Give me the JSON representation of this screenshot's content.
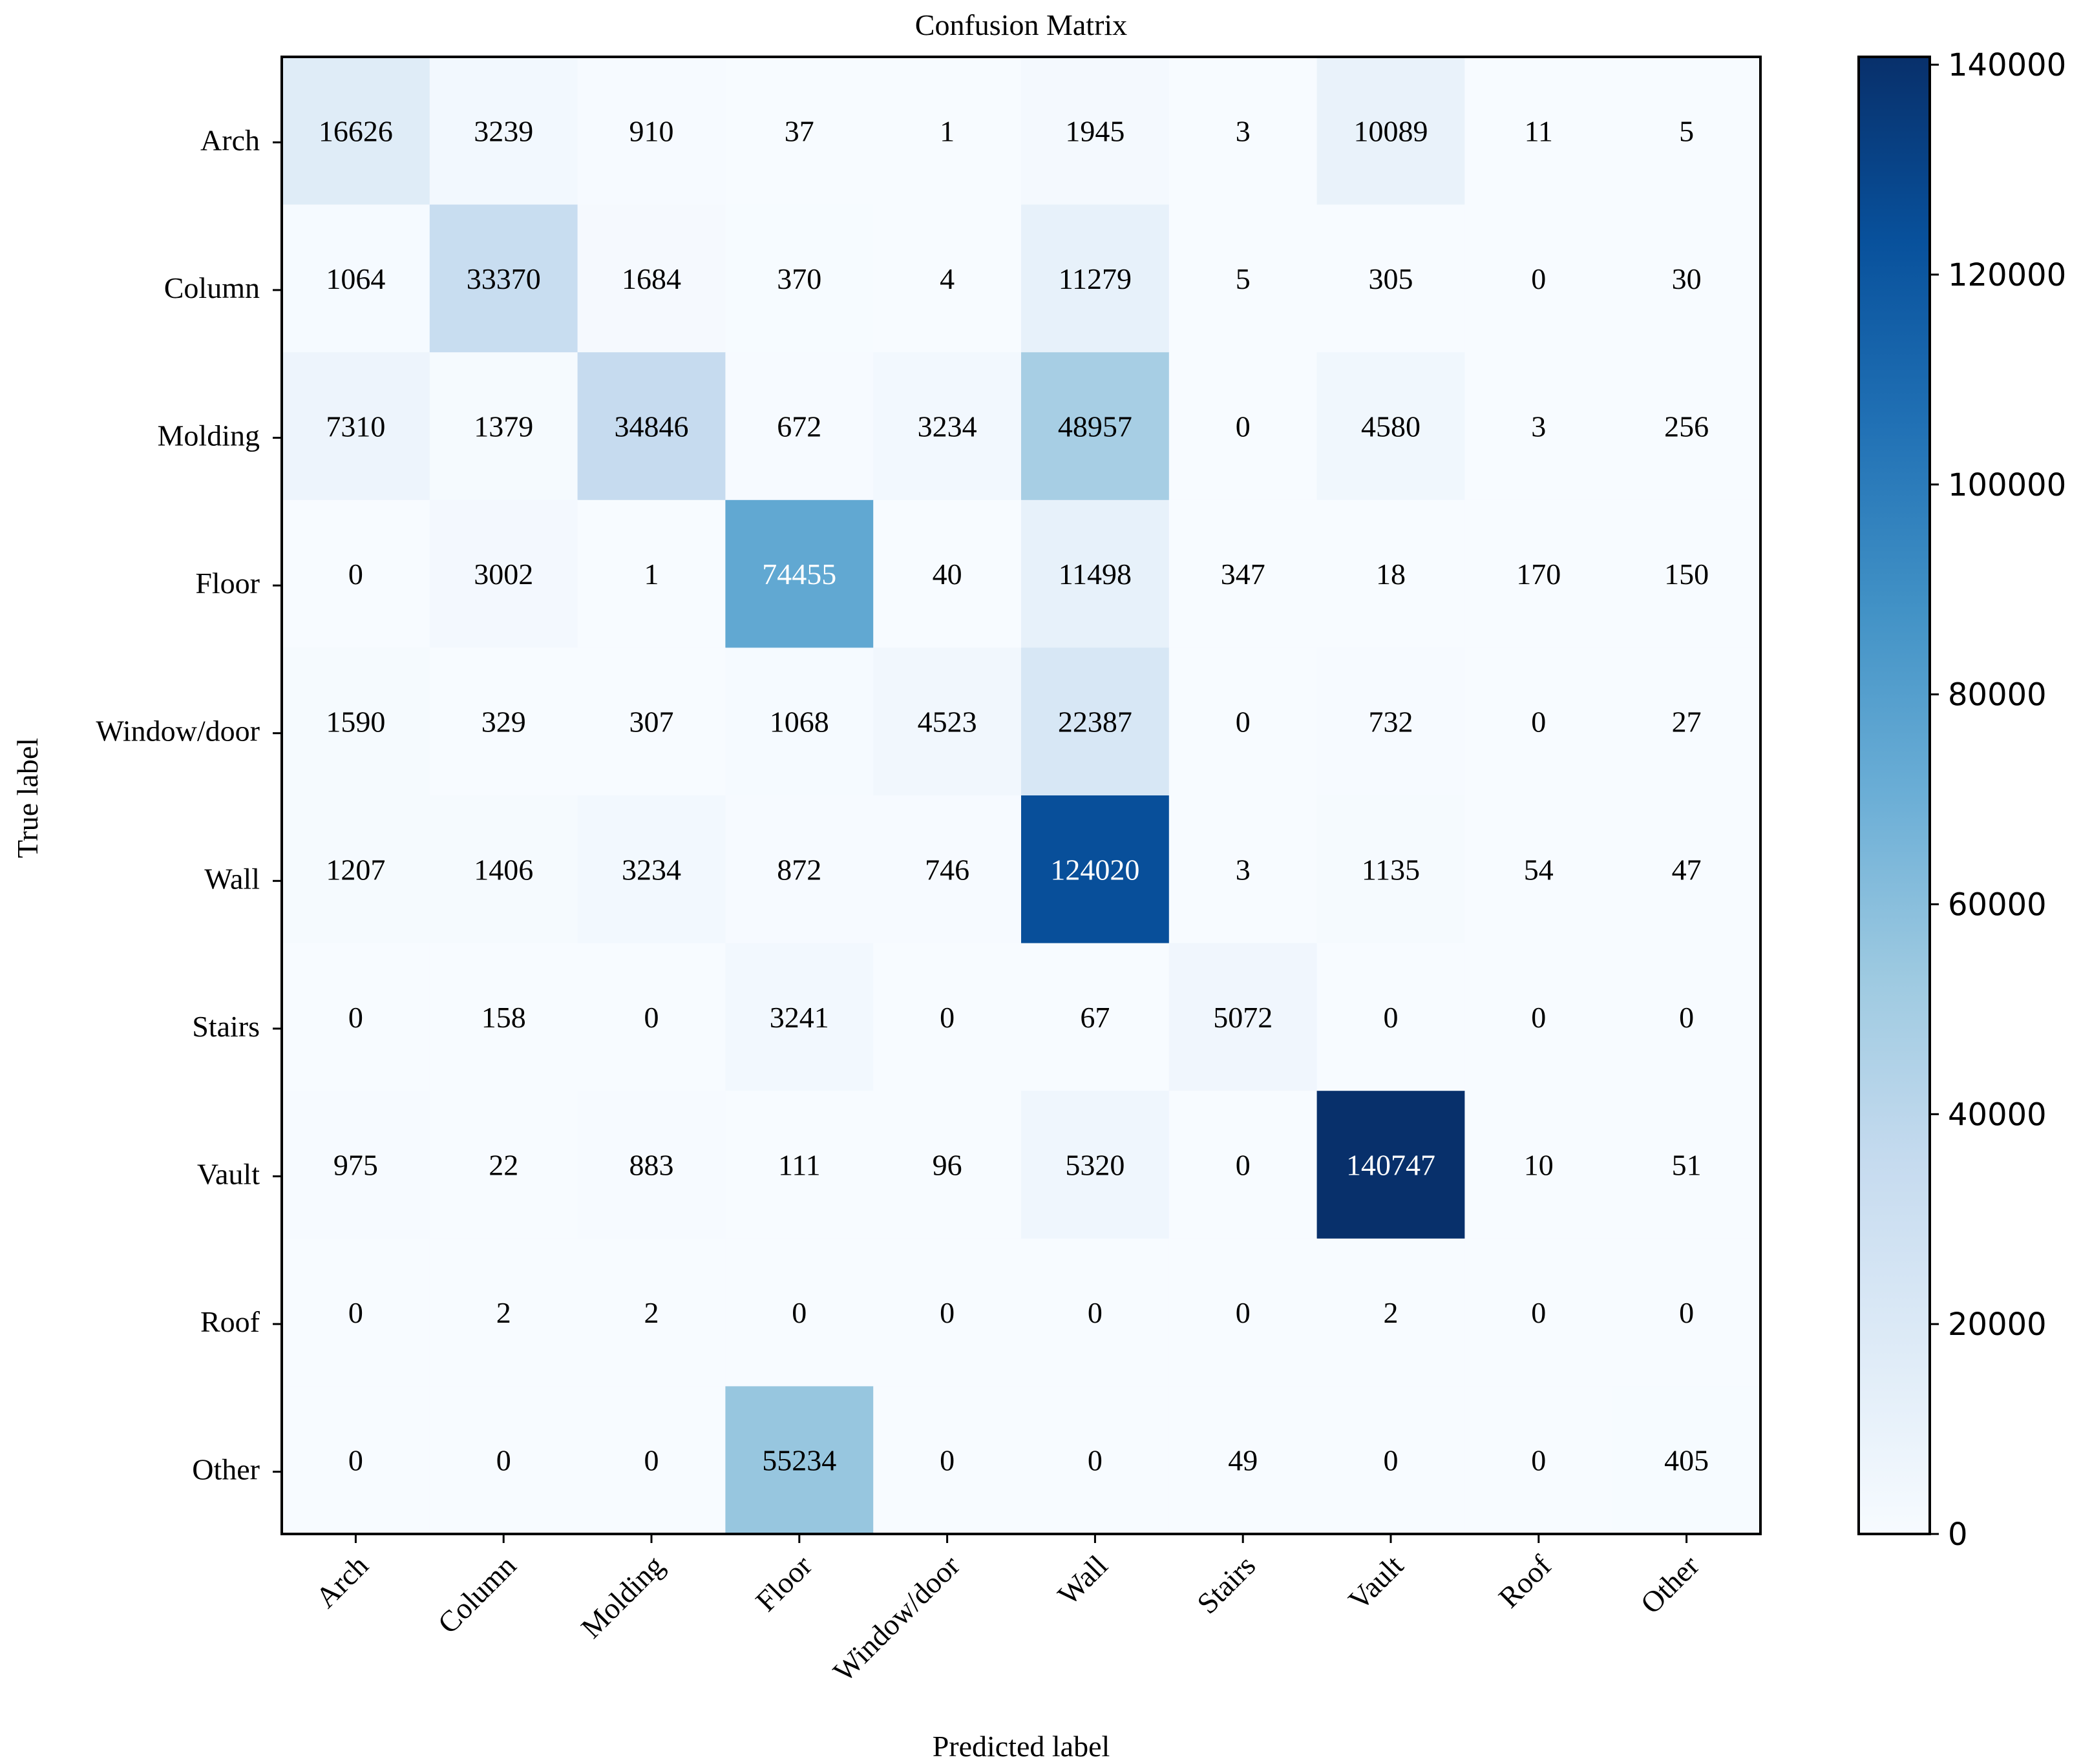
{
  "chart_data": {
    "type": "heatmap",
    "title": "Confusion Matrix",
    "xlabel": "Predicted label",
    "ylabel": "True label",
    "x_categories": [
      "Arch",
      "Column",
      "Molding",
      "Floor",
      "Window/door",
      "Wall",
      "Stairs",
      "Vault",
      "Roof",
      "Other"
    ],
    "y_categories": [
      "Arch",
      "Column",
      "Molding",
      "Floor",
      "Window/door",
      "Wall",
      "Stairs",
      "Vault",
      "Roof",
      "Other"
    ],
    "matrix": [
      [
        16626,
        3239,
        910,
        37,
        1,
        1945,
        3,
        10089,
        11,
        5
      ],
      [
        1064,
        33370,
        1684,
        370,
        4,
        11279,
        5,
        305,
        0,
        30
      ],
      [
        7310,
        1379,
        34846,
        672,
        3234,
        48957,
        0,
        4580,
        3,
        256
      ],
      [
        0,
        3002,
        1,
        74455,
        40,
        11498,
        347,
        18,
        170,
        150
      ],
      [
        1590,
        329,
        307,
        1068,
        4523,
        22387,
        0,
        732,
        0,
        27
      ],
      [
        1207,
        1406,
        3234,
        872,
        746,
        124020,
        3,
        1135,
        54,
        47
      ],
      [
        0,
        158,
        0,
        3241,
        0,
        67,
        5072,
        0,
        0,
        0
      ],
      [
        975,
        22,
        883,
        111,
        96,
        5320,
        0,
        140747,
        10,
        51
      ],
      [
        0,
        2,
        2,
        0,
        0,
        0,
        0,
        2,
        0,
        0
      ],
      [
        0,
        0,
        0,
        55234,
        0,
        0,
        49,
        0,
        0,
        405
      ]
    ],
    "colorbar": {
      "min": 0,
      "max": 140747,
      "ticks": [
        0,
        20000,
        40000,
        60000,
        80000,
        100000,
        120000,
        140000
      ],
      "colormap": "Blues"
    }
  }
}
